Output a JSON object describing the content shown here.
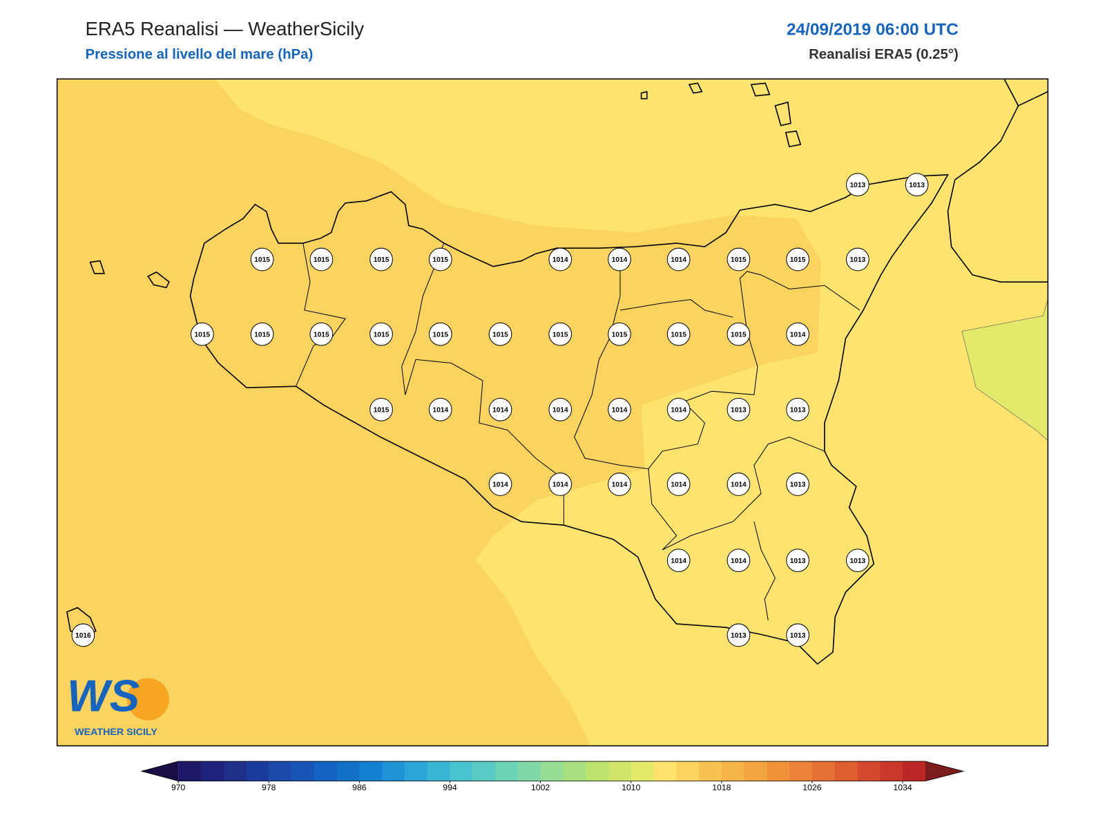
{
  "header": {
    "title": "ERA5 Reanalisi — WeatherSicily",
    "subtitle": "Pressione al livello del mare (hPa)",
    "date": "24/09/2019 06:00 UTC",
    "source": "Reanalisi ERA5 (0.25°)"
  },
  "stations": [
    1013,
    1013,
    1015,
    1015,
    1015,
    1015,
    1014,
    1014,
    1014,
    1015,
    1015,
    1013,
    1015,
    1015,
    1015,
    1015,
    1015,
    1015,
    1015,
    1015,
    1015,
    1015,
    1014,
    1015,
    1014,
    1014,
    1014,
    1014,
    1014,
    1013,
    1013,
    1014,
    1014,
    1014,
    1014,
    1014,
    1013,
    1014,
    1014,
    1013,
    1013,
    1016,
    1013,
    1013
  ],
  "colorbar": {
    "lim": [
      970,
      1036
    ],
    "ticks": [
      970,
      978,
      986,
      994,
      1002,
      1010,
      1018,
      1026,
      1034
    ],
    "colors": [
      "#1e1868",
      "#1f2278",
      "#1f2f8a",
      "#1c3c9b",
      "#1a4aaa",
      "#1756b6",
      "#1563c1",
      "#1371c8",
      "#1580cf",
      "#1f92d3",
      "#2aa5d5",
      "#38b6d3",
      "#48c2cc",
      "#5acbc2",
      "#6cd2b6",
      "#80d8a8",
      "#95dd95",
      "#a8e07f",
      "#bbe36e",
      "#cfe56a",
      "#e3e96a",
      "#fde46e",
      "#fbd35f",
      "#f8c250",
      "#f5b447",
      "#f2a440",
      "#ef933b",
      "#eb8237",
      "#e57034",
      "#de5d31",
      "#d54a2e",
      "#c9382b",
      "#bb2828"
    ],
    "under_color": "#1a0c45",
    "over_color": "#7d1c1c"
  },
  "logo": {
    "text": "WS",
    "subtext": "WEATHER SICILY"
  }
}
